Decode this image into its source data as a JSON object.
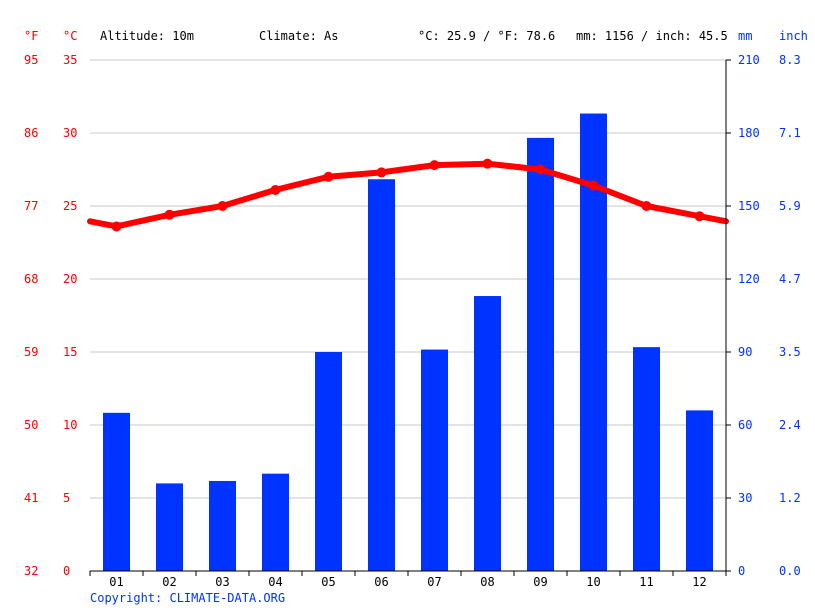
{
  "header": {
    "f_unit": "°F",
    "c_unit": "°C",
    "altitude": "Altitude: 10m",
    "climate": "Climate: As",
    "temp_summary": "°C: 25.9 / °F: 78.6",
    "precip_summary": "mm: 1156 / inch: 45.5",
    "mm_unit": "mm",
    "inch_unit": "inch"
  },
  "colors": {
    "temperature": "#ff0000",
    "precipitation": "#0033ff",
    "grid": "#c8c8c8"
  },
  "axes": {
    "celsius_ticks": [
      "0",
      "5",
      "10",
      "15",
      "20",
      "25",
      "30",
      "35"
    ],
    "fahrenheit_ticks": [
      "32",
      "41",
      "50",
      "59",
      "68",
      "77",
      "86",
      "95"
    ],
    "mm_ticks": [
      "0",
      "30",
      "60",
      "90",
      "120",
      "150",
      "180",
      "210"
    ],
    "inch_ticks": [
      "0.0",
      "1.2",
      "2.4",
      "3.5",
      "4.7",
      "5.9",
      "7.1",
      "8.3"
    ]
  },
  "chart_data": {
    "type": "bar",
    "categories": [
      "01",
      "02",
      "03",
      "04",
      "05",
      "06",
      "07",
      "08",
      "09",
      "10",
      "11",
      "12"
    ],
    "series": [
      {
        "values": [
          65,
          36,
          37,
          40,
          90,
          161,
          91,
          113,
          178,
          188,
          92,
          66
        ],
        "axis": "mm",
        "type": "bar"
      },
      {
        "values": [
          23.6,
          24.4,
          25.0,
          26.1,
          27.0,
          27.3,
          27.8,
          27.9,
          27.5,
          26.4,
          25.0,
          24.3
        ],
        "axis": "celsius",
        "type": "line"
      }
    ],
    "ylim_celsius": [
      0,
      35
    ],
    "ylim_mm": [
      0,
      210
    ],
    "grid": true
  },
  "footer": {
    "copyright": "Copyright: CLIMATE-DATA.ORG"
  }
}
